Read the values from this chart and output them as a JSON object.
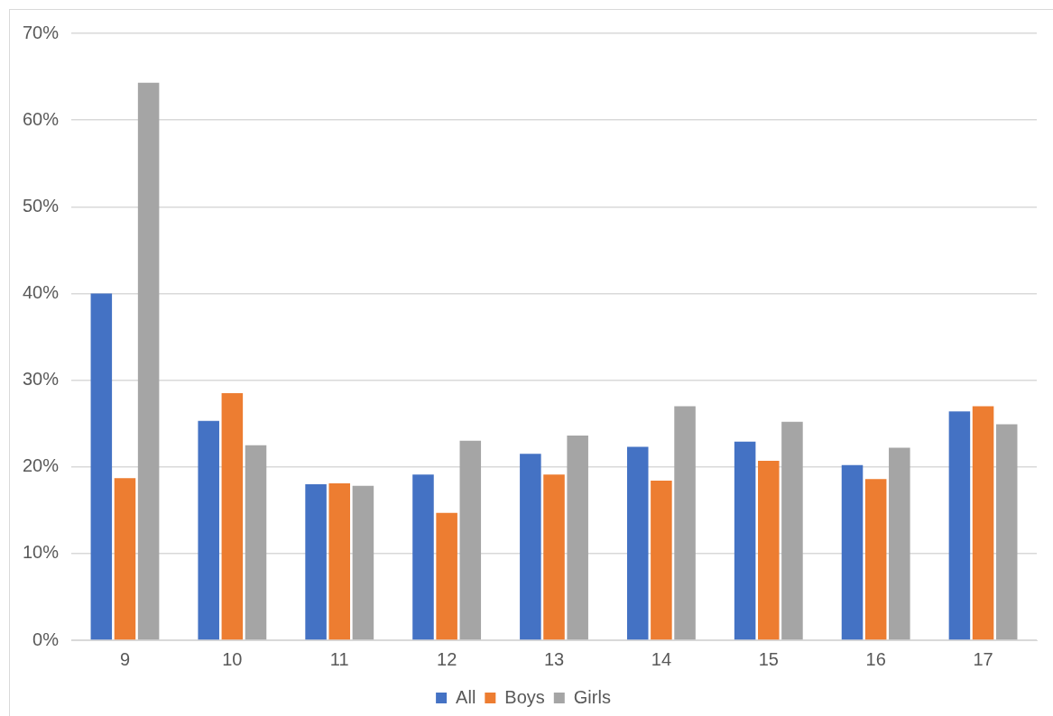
{
  "chart_data": {
    "type": "bar",
    "categories": [
      "9",
      "10",
      "11",
      "12",
      "13",
      "14",
      "15",
      "16",
      "17"
    ],
    "series": [
      {
        "name": "All",
        "color": "#4472c4",
        "values": [
          40.0,
          25.3,
          18.0,
          19.1,
          21.5,
          22.3,
          22.9,
          20.2,
          26.4
        ]
      },
      {
        "name": "Boys",
        "color": "#ed7d31",
        "values": [
          18.7,
          28.5,
          18.1,
          14.7,
          19.1,
          18.4,
          20.7,
          18.6,
          27.0
        ]
      },
      {
        "name": "Girls",
        "color": "#a5a5a5",
        "values": [
          64.3,
          22.5,
          17.8,
          23.0,
          23.6,
          27.0,
          25.2,
          22.2,
          24.9
        ]
      }
    ],
    "ylim": [
      0,
      70
    ],
    "yticks": [
      {
        "value": 0,
        "label": "0%"
      },
      {
        "value": 10,
        "label": "10%"
      },
      {
        "value": 20,
        "label": "20%"
      },
      {
        "value": 30,
        "label": "30%"
      },
      {
        "value": 40,
        "label": "40%"
      },
      {
        "value": 50,
        "label": "50%"
      },
      {
        "value": 60,
        "label": "60%"
      },
      {
        "value": 70,
        "label": "70%"
      }
    ],
    "grid": "y",
    "legend": "bottom"
  }
}
